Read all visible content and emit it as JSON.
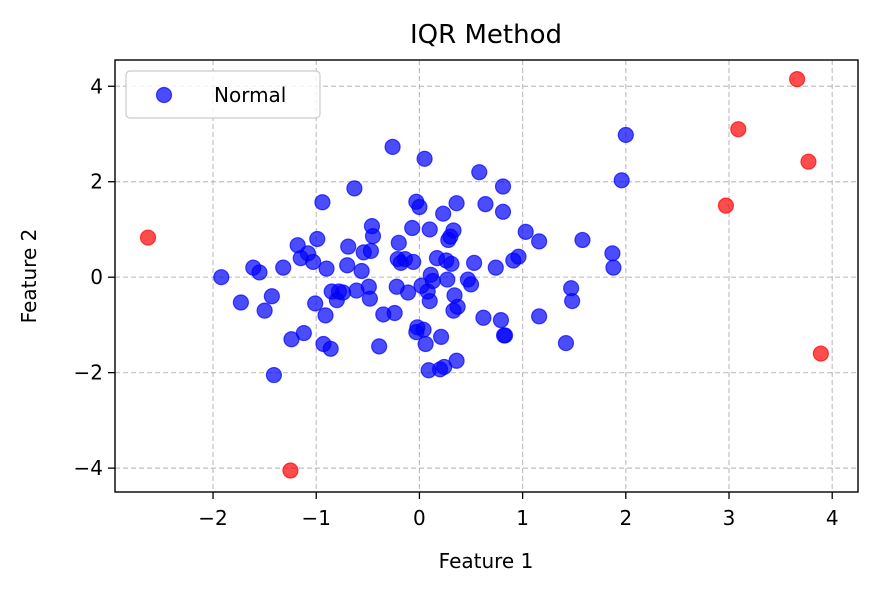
{
  "chart_data": {
    "type": "scatter",
    "title": "IQR Method",
    "xlabel": "Feature 1",
    "ylabel": "Feature 2",
    "xlim": [
      -2.95,
      4.25
    ],
    "ylim": [
      -4.5,
      4.55
    ],
    "xticks": [
      -2,
      -1,
      0,
      1,
      2,
      3,
      4
    ],
    "yticks": [
      -4,
      -2,
      0,
      2,
      4
    ],
    "xtick_labels": [
      "−2",
      "−1",
      "0",
      "1",
      "2",
      "3",
      "4"
    ],
    "ytick_labels": [
      "−4",
      "−2",
      "0",
      "2",
      "4"
    ],
    "grid": true,
    "legend_position": "top-left",
    "series": [
      {
        "name": "Normal",
        "color": "#0000ff",
        "points": [
          [
            -1.92,
            0.0
          ],
          [
            -1.73,
            -0.53
          ],
          [
            -1.61,
            0.2
          ],
          [
            -1.55,
            0.1
          ],
          [
            -1.5,
            -0.7
          ],
          [
            -1.43,
            -0.4
          ],
          [
            -1.41,
            -2.05
          ],
          [
            -1.32,
            0.2
          ],
          [
            -1.24,
            -1.3
          ],
          [
            -1.18,
            0.67
          ],
          [
            -1.15,
            0.4
          ],
          [
            -1.12,
            -1.17
          ],
          [
            -1.08,
            0.5
          ],
          [
            -1.03,
            0.32
          ],
          [
            -1.01,
            -0.55
          ],
          [
            -0.99,
            0.8
          ],
          [
            -0.94,
            1.57
          ],
          [
            -0.93,
            -1.4
          ],
          [
            -0.91,
            -0.8
          ],
          [
            -0.9,
            0.18
          ],
          [
            -0.86,
            -1.5
          ],
          [
            -0.85,
            -0.3
          ],
          [
            -0.8,
            -0.48
          ],
          [
            -0.78,
            -0.3
          ],
          [
            -0.74,
            -0.32
          ],
          [
            -0.7,
            0.25
          ],
          [
            -0.69,
            0.64
          ],
          [
            -0.63,
            1.86
          ],
          [
            -0.61,
            -0.28
          ],
          [
            -0.56,
            0.13
          ],
          [
            -0.54,
            0.52
          ],
          [
            -0.49,
            -0.2
          ],
          [
            -0.48,
            -0.45
          ],
          [
            -0.46,
            1.07
          ],
          [
            -0.45,
            0.86
          ],
          [
            -0.47,
            0.55
          ],
          [
            -0.39,
            -1.45
          ],
          [
            -0.35,
            -0.78
          ],
          [
            -0.26,
            2.73
          ],
          [
            -0.24,
            -0.75
          ],
          [
            -0.22,
            -0.2
          ],
          [
            -0.2,
            0.72
          ],
          [
            -0.21,
            0.38
          ],
          [
            -0.18,
            0.3
          ],
          [
            -0.14,
            0.38
          ],
          [
            -0.11,
            -0.32
          ],
          [
            -0.06,
            0.32
          ],
          [
            -0.07,
            1.03
          ],
          [
            -0.03,
            1.58
          ],
          [
            -0.03,
            -1.15
          ],
          [
            -0.02,
            -1.05
          ],
          [
            0.0,
            1.47
          ],
          [
            0.02,
            -0.18
          ],
          [
            0.04,
            -1.1
          ],
          [
            0.05,
            2.48
          ],
          [
            0.06,
            -1.4
          ],
          [
            0.08,
            -0.3
          ],
          [
            0.09,
            -1.95
          ],
          [
            0.1,
            -0.5
          ],
          [
            0.1,
            1.0
          ],
          [
            0.11,
            0.05
          ],
          [
            0.13,
            -0.08
          ],
          [
            0.17,
            0.4
          ],
          [
            0.2,
            -1.93
          ],
          [
            0.21,
            -1.25
          ],
          [
            0.23,
            1.33
          ],
          [
            0.24,
            -1.88
          ],
          [
            0.26,
            0.35
          ],
          [
            0.27,
            -0.05
          ],
          [
            0.28,
            0.78
          ],
          [
            0.3,
            0.85
          ],
          [
            0.31,
            0.28
          ],
          [
            0.33,
            -0.7
          ],
          [
            0.33,
            0.98
          ],
          [
            0.34,
            -0.38
          ],
          [
            0.36,
            1.55
          ],
          [
            0.36,
            -1.75
          ],
          [
            0.37,
            -0.62
          ],
          [
            0.47,
            -0.05
          ],
          [
            0.5,
            -0.15
          ],
          [
            0.53,
            0.3
          ],
          [
            0.58,
            2.2
          ],
          [
            0.62,
            -0.85
          ],
          [
            0.64,
            1.53
          ],
          [
            0.74,
            0.2
          ],
          [
            0.79,
            -0.9
          ],
          [
            0.81,
            1.9
          ],
          [
            0.81,
            1.37
          ],
          [
            0.83,
            -1.22
          ],
          [
            0.82,
            -1.22
          ],
          [
            0.91,
            0.35
          ],
          [
            0.96,
            0.43
          ],
          [
            1.03,
            0.95
          ],
          [
            1.16,
            0.75
          ],
          [
            1.16,
            -0.82
          ],
          [
            1.42,
            -1.38
          ],
          [
            1.47,
            -0.23
          ],
          [
            1.48,
            -0.5
          ],
          [
            1.58,
            0.78
          ],
          [
            1.87,
            0.5
          ],
          [
            1.88,
            0.2
          ],
          [
            1.96,
            2.03
          ],
          [
            2.0,
            2.98
          ]
        ]
      },
      {
        "color": "#ff0000",
        "points": [
          [
            -2.63,
            0.83
          ],
          [
            -1.25,
            -4.05
          ],
          [
            2.97,
            1.5
          ],
          [
            3.09,
            3.1
          ],
          [
            3.66,
            4.15
          ],
          [
            3.77,
            2.42
          ],
          [
            3.89,
            -1.6
          ]
        ]
      }
    ]
  }
}
